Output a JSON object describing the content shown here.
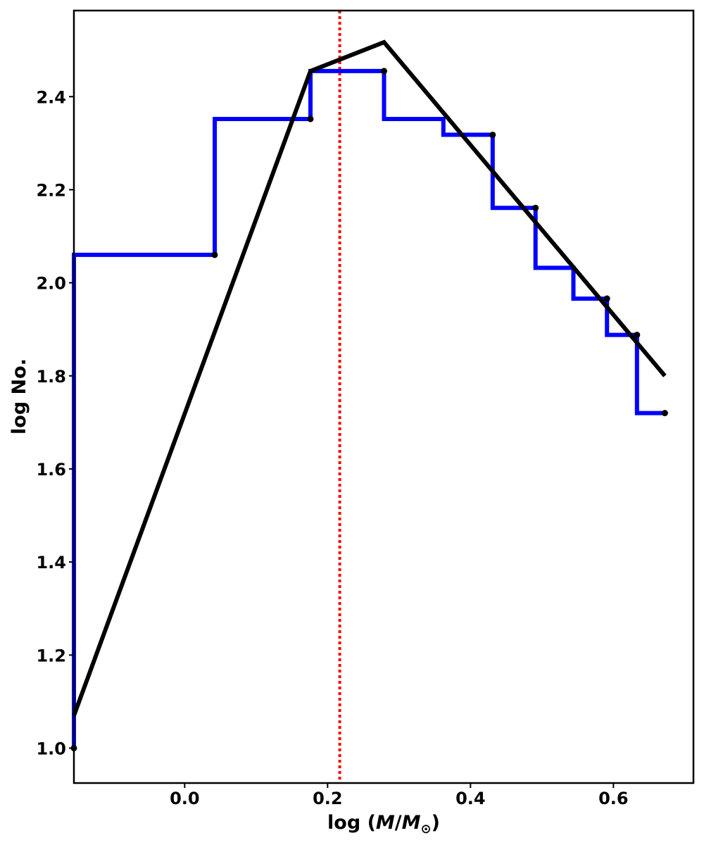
{
  "chart_data": {
    "type": "line",
    "title": "",
    "xlabel": "log  (M/M☉)",
    "ylabel": "log No.",
    "xlim": [
      -0.155,
      0.712
    ],
    "ylim": [
      0.925,
      2.585
    ],
    "grid": false,
    "x_ticks": [
      0.0,
      0.2,
      0.4,
      0.6
    ],
    "x_tick_labels": [
      "0.0",
      "0.2",
      "0.4",
      "0.6"
    ],
    "y_ticks": [
      1.0,
      1.2,
      1.4,
      1.6,
      1.8,
      2.0,
      2.2,
      2.4
    ],
    "y_tick_labels": [
      "1.0",
      "1.2",
      "1.4",
      "1.6",
      "1.8",
      "2.0",
      "2.2",
      "2.4"
    ],
    "series": [
      {
        "style": "histogram-step",
        "color": "#0000ff",
        "points": [
          [
            -0.155,
            1.0
          ],
          [
            -0.155,
            2.06
          ],
          [
            0.042,
            2.06
          ],
          [
            0.042,
            2.352
          ],
          [
            0.176,
            2.352
          ],
          [
            0.176,
            2.455
          ],
          [
            0.279,
            2.455
          ],
          [
            0.279,
            2.352
          ],
          [
            0.362,
            2.352
          ],
          [
            0.362,
            2.318
          ],
          [
            0.431,
            2.318
          ],
          [
            0.431,
            2.161
          ],
          [
            0.491,
            2.161
          ],
          [
            0.491,
            2.032
          ],
          [
            0.544,
            2.032
          ],
          [
            0.544,
            1.966
          ],
          [
            0.591,
            1.966
          ],
          [
            0.591,
            1.888
          ],
          [
            0.633,
            1.888
          ],
          [
            0.633,
            1.72
          ],
          [
            0.672,
            1.72
          ]
        ]
      },
      {
        "style": "dots",
        "color": "#000000",
        "points": [
          [
            -0.155,
            1.0
          ],
          [
            0.042,
            2.06
          ],
          [
            0.176,
            2.352
          ],
          [
            0.279,
            2.455
          ],
          [
            0.431,
            2.318
          ],
          [
            0.491,
            2.161
          ],
          [
            0.591,
            1.966
          ],
          [
            0.633,
            1.888
          ],
          [
            0.672,
            1.72
          ]
        ]
      },
      {
        "style": "line",
        "color": "#000000",
        "points": [
          [
            -0.155,
            1.07
          ],
          [
            0.176,
            2.455
          ],
          [
            0.279,
            2.517
          ],
          [
            0.672,
            1.8
          ]
        ]
      }
    ],
    "annotations": [
      {
        "type": "vertical-line",
        "x": 0.217,
        "color": "#ff0000",
        "style": "dotted"
      }
    ]
  }
}
